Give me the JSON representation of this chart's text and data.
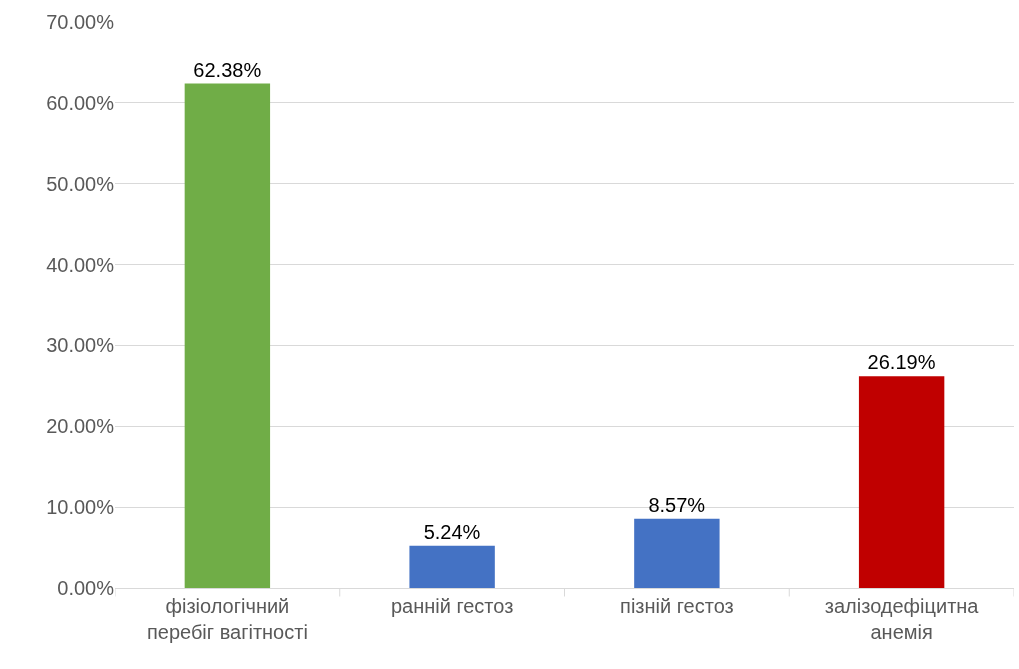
{
  "chart_data": {
    "type": "bar",
    "categories": [
      "фізіологічний перебіг вагітності",
      "ранній гестоз",
      "пізній гестоз",
      "залізодефіцитна анемія"
    ],
    "values": [
      62.38,
      5.24,
      8.57,
      26.19
    ],
    "colors": [
      "#70ad47",
      "#4472c4",
      "#4472c4",
      "#c00000"
    ],
    "value_labels": [
      "62.38%",
      "5.24%",
      "8.57%",
      "26.19%"
    ],
    "ylim": [
      0,
      70
    ],
    "yticks": [
      {
        "value": 0,
        "label": "0.00%"
      },
      {
        "value": 10,
        "label": "10.00%"
      },
      {
        "value": 20,
        "label": "20.00%"
      },
      {
        "value": 30,
        "label": "30.00%"
      },
      {
        "value": 40,
        "label": "40.00%"
      },
      {
        "value": 50,
        "label": "50.00%"
      },
      {
        "value": 60,
        "label": "60.00%"
      },
      {
        "value": 70,
        "label": "70.00%"
      }
    ],
    "grid": "y",
    "legend": false
  }
}
